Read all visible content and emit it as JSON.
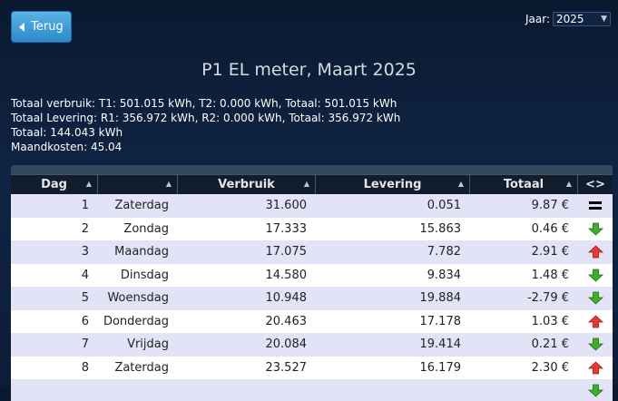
{
  "nav": {
    "back_label": "Terug"
  },
  "year": {
    "label": "Jaar:",
    "selected": "2025"
  },
  "title": "P1 EL meter, Maart 2025",
  "summary": [
    "Totaal verbruik: T1: 501.015 kWh, T2: 0.000 kWh, Totaal: 501.015 kWh",
    "Totaal Levering: R1: 356.972 kWh, R2: 0.000 kWh, Totaal: 356.972 kWh",
    "Totaal: 144.043 kWh",
    "Maandkosten: 45.04"
  ],
  "table": {
    "headers": [
      "Dag",
      "",
      "Verbruik",
      "Levering",
      "Totaal",
      "<>"
    ],
    "rows": [
      {
        "dag": "1",
        "naam": "Zaterdag",
        "verbruik": "31.600",
        "levering": "0.051",
        "totaal": "9.87 €",
        "trend": "equal"
      },
      {
        "dag": "2",
        "naam": "Zondag",
        "verbruik": "17.333",
        "levering": "15.863",
        "totaal": "0.46 €",
        "trend": "down"
      },
      {
        "dag": "3",
        "naam": "Maandag",
        "verbruik": "17.075",
        "levering": "7.782",
        "totaal": "2.91 €",
        "trend": "up"
      },
      {
        "dag": "4",
        "naam": "Dinsdag",
        "verbruik": "14.580",
        "levering": "9.834",
        "totaal": "1.48 €",
        "trend": "down"
      },
      {
        "dag": "5",
        "naam": "Woensdag",
        "verbruik": "10.948",
        "levering": "19.884",
        "totaal": "-2.79 €",
        "trend": "down"
      },
      {
        "dag": "6",
        "naam": "Donderdag",
        "verbruik": "20.463",
        "levering": "17.178",
        "totaal": "1.03 €",
        "trend": "up"
      },
      {
        "dag": "7",
        "naam": "Vrijdag",
        "verbruik": "20.084",
        "levering": "19.414",
        "totaal": "0.21 €",
        "trend": "down"
      },
      {
        "dag": "8",
        "naam": "Zaterdag",
        "verbruik": "23.527",
        "levering": "16.179",
        "totaal": "2.30 €",
        "trend": "up"
      },
      {
        "dag": "",
        "naam": "",
        "verbruik": "",
        "levering": "",
        "totaal": "",
        "trend": "down"
      }
    ]
  },
  "icons": {
    "back": "back-arrow-icon",
    "sort": "sort-arrow-icon",
    "equal": "equal-icon",
    "up": "arrow-up-icon",
    "down": "arrow-down-icon"
  },
  "colors": {
    "up_arrow": "#e53935",
    "down_arrow": "#3fae2a",
    "button": "#2b8acb",
    "row_odd": "#e3e3f7"
  }
}
